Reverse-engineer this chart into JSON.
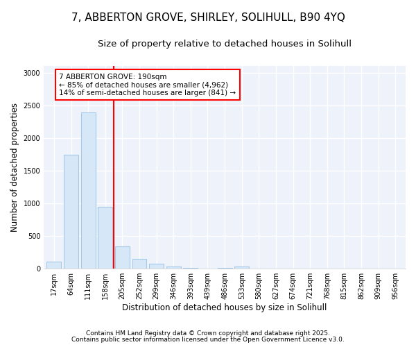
{
  "title1": "7, ABBERTON GROVE, SHIRLEY, SOLIHULL, B90 4YQ",
  "title2": "Size of property relative to detached houses in Solihull",
  "xlabel": "Distribution of detached houses by size in Solihull",
  "ylabel": "Number of detached properties",
  "categories": [
    "17sqm",
    "64sqm",
    "111sqm",
    "158sqm",
    "205sqm",
    "252sqm",
    "299sqm",
    "346sqm",
    "393sqm",
    "439sqm",
    "486sqm",
    "533sqm",
    "580sqm",
    "627sqm",
    "674sqm",
    "721sqm",
    "768sqm",
    "815sqm",
    "862sqm",
    "909sqm",
    "956sqm"
  ],
  "values": [
    110,
    1740,
    2390,
    950,
    340,
    150,
    80,
    35,
    10,
    0,
    15,
    30,
    0,
    0,
    0,
    0,
    0,
    0,
    0,
    0,
    0
  ],
  "bar_color": "#d6e8f7",
  "bar_edge_color": "#a8c8e8",
  "vline_x": 3.5,
  "vline_color": "red",
  "annotation_box_text": "7 ABBERTON GROVE: 190sqm\n← 85% of detached houses are smaller (4,962)\n14% of semi-detached houses are larger (841) →",
  "box_edge_color": "red",
  "footnote1": "Contains HM Land Registry data © Crown copyright and database right 2025.",
  "footnote2": "Contains public sector information licensed under the Open Government Licence v3.0.",
  "ylim": [
    0,
    3100
  ],
  "yticks": [
    0,
    500,
    1000,
    1500,
    2000,
    2500,
    3000
  ],
  "bg_color": "#eef3fb",
  "title_fontsize": 11,
  "subtitle_fontsize": 9.5,
  "tick_fontsize": 7,
  "label_fontsize": 8.5,
  "footnote_fontsize": 6.5
}
